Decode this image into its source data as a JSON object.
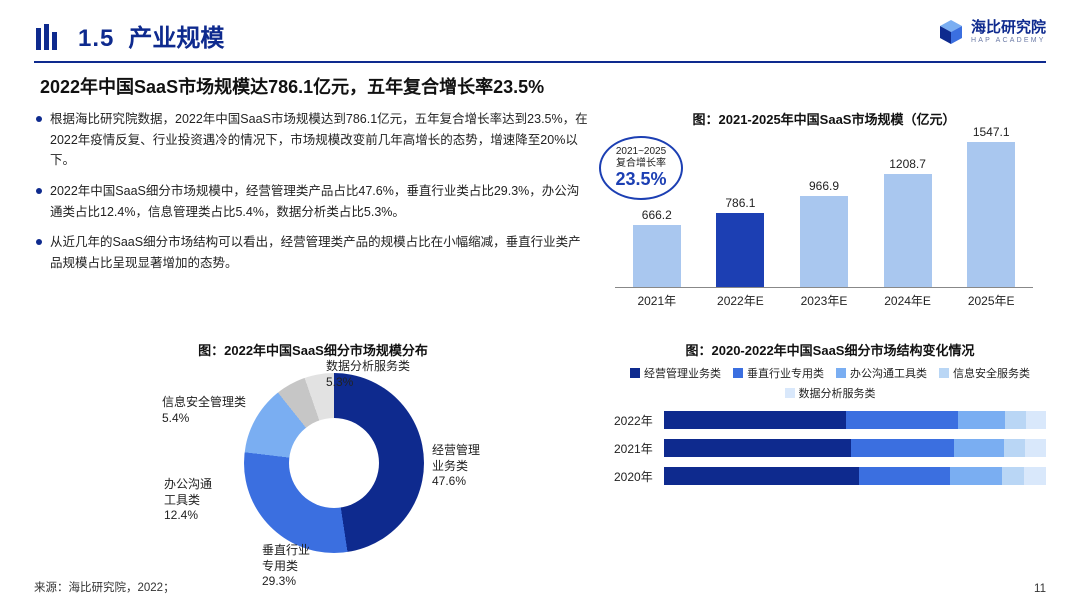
{
  "brand": {
    "cn": "海比研究院",
    "en": "HAP ACADEMY"
  },
  "section_num": "1.5",
  "section_title": "产业规模",
  "subhead": "2022年中国SaaS市场规模达786.1亿元，五年复合增长率23.5%",
  "bullets": [
    "根据海比研究院数据，2022年中国SaaS市场规模达到786.1亿元，五年复合增长率达到23.5%，在2022年疫情反复、行业投资遇冷的情况下，市场规模改变前几年高增长的态势，增速降至20%以下。",
    "2022年中国SaaS细分市场规模中，经营管理类产品占比47.6%，垂直行业类占比29.3%，办公沟通类占比12.4%，信息管理类占比5.4%，数据分析类占比5.3%。",
    "从近几年的SaaS细分市场结构可以看出，经营管理类产品的规模占比在小幅缩减，垂直行业类产品规模占比呈现显著增加的态势。"
  ],
  "bar_chart": {
    "title": "图：2021-2025年中国SaaS市场规模（亿元）",
    "categories": [
      "2021年",
      "2022年E",
      "2023年E",
      "2024年E",
      "2025年E"
    ],
    "values": [
      666.2,
      786.1,
      966.9,
      1208.7,
      1547.1
    ],
    "colors": [
      "#a9c7ef",
      "#1c3fb3",
      "#a9c7ef",
      "#a9c7ef",
      "#a9c7ef"
    ],
    "max": 1600,
    "growth_badge_line1": "2021~2025",
    "growth_badge_line2": "复合增长率",
    "growth_badge_val": "23.5%"
  },
  "donut": {
    "title": "图：2022年中国SaaS细分市场规模分布",
    "slices": [
      {
        "label_lines": [
          "经营管理",
          "业务类",
          "47.6%"
        ],
        "value": 47.6,
        "color": "#0e2a8e"
      },
      {
        "label_lines": [
          "垂直行业",
          "专用类",
          "29.3%"
        ],
        "value": 29.3,
        "color": "#3b6fe0"
      },
      {
        "label_lines": [
          "办公沟通",
          "工具类",
          "12.4%"
        ],
        "value": 12.4,
        "color": "#7aaef2"
      },
      {
        "label_lines": [
          "信息安全管理类",
          "5.4%"
        ],
        "value": 5.4,
        "color": "#c6c6c6"
      },
      {
        "label_lines": [
          "数据分析服务类",
          "5.3%"
        ],
        "value": 5.3,
        "color": "#e2e2e2"
      }
    ]
  },
  "hstack": {
    "title": "图：2020-2022年中国SaaS细分市场结构变化情况",
    "legend": [
      {
        "name": "经营管理业务类",
        "color": "#0e2a8e"
      },
      {
        "name": "垂直行业专用类",
        "color": "#3b6fe0"
      },
      {
        "name": "办公沟通工具类",
        "color": "#7aaef2"
      },
      {
        "name": "信息安全服务类",
        "color": "#b9d6f5"
      },
      {
        "name": "数据分析服务类",
        "color": "#d9e8fb"
      }
    ],
    "rows": [
      {
        "year": "2022年",
        "segments": [
          47.6,
          29.3,
          12.4,
          5.4,
          5.3
        ]
      },
      {
        "year": "2021年",
        "segments": [
          49.0,
          27.0,
          13.0,
          5.5,
          5.5
        ]
      },
      {
        "year": "2020年",
        "segments": [
          51.0,
          24.0,
          13.5,
          5.8,
          5.7
        ]
      }
    ]
  },
  "source": "来源：海比研究院，2022；",
  "page_number": "11",
  "accent": "#0e2a8e"
}
